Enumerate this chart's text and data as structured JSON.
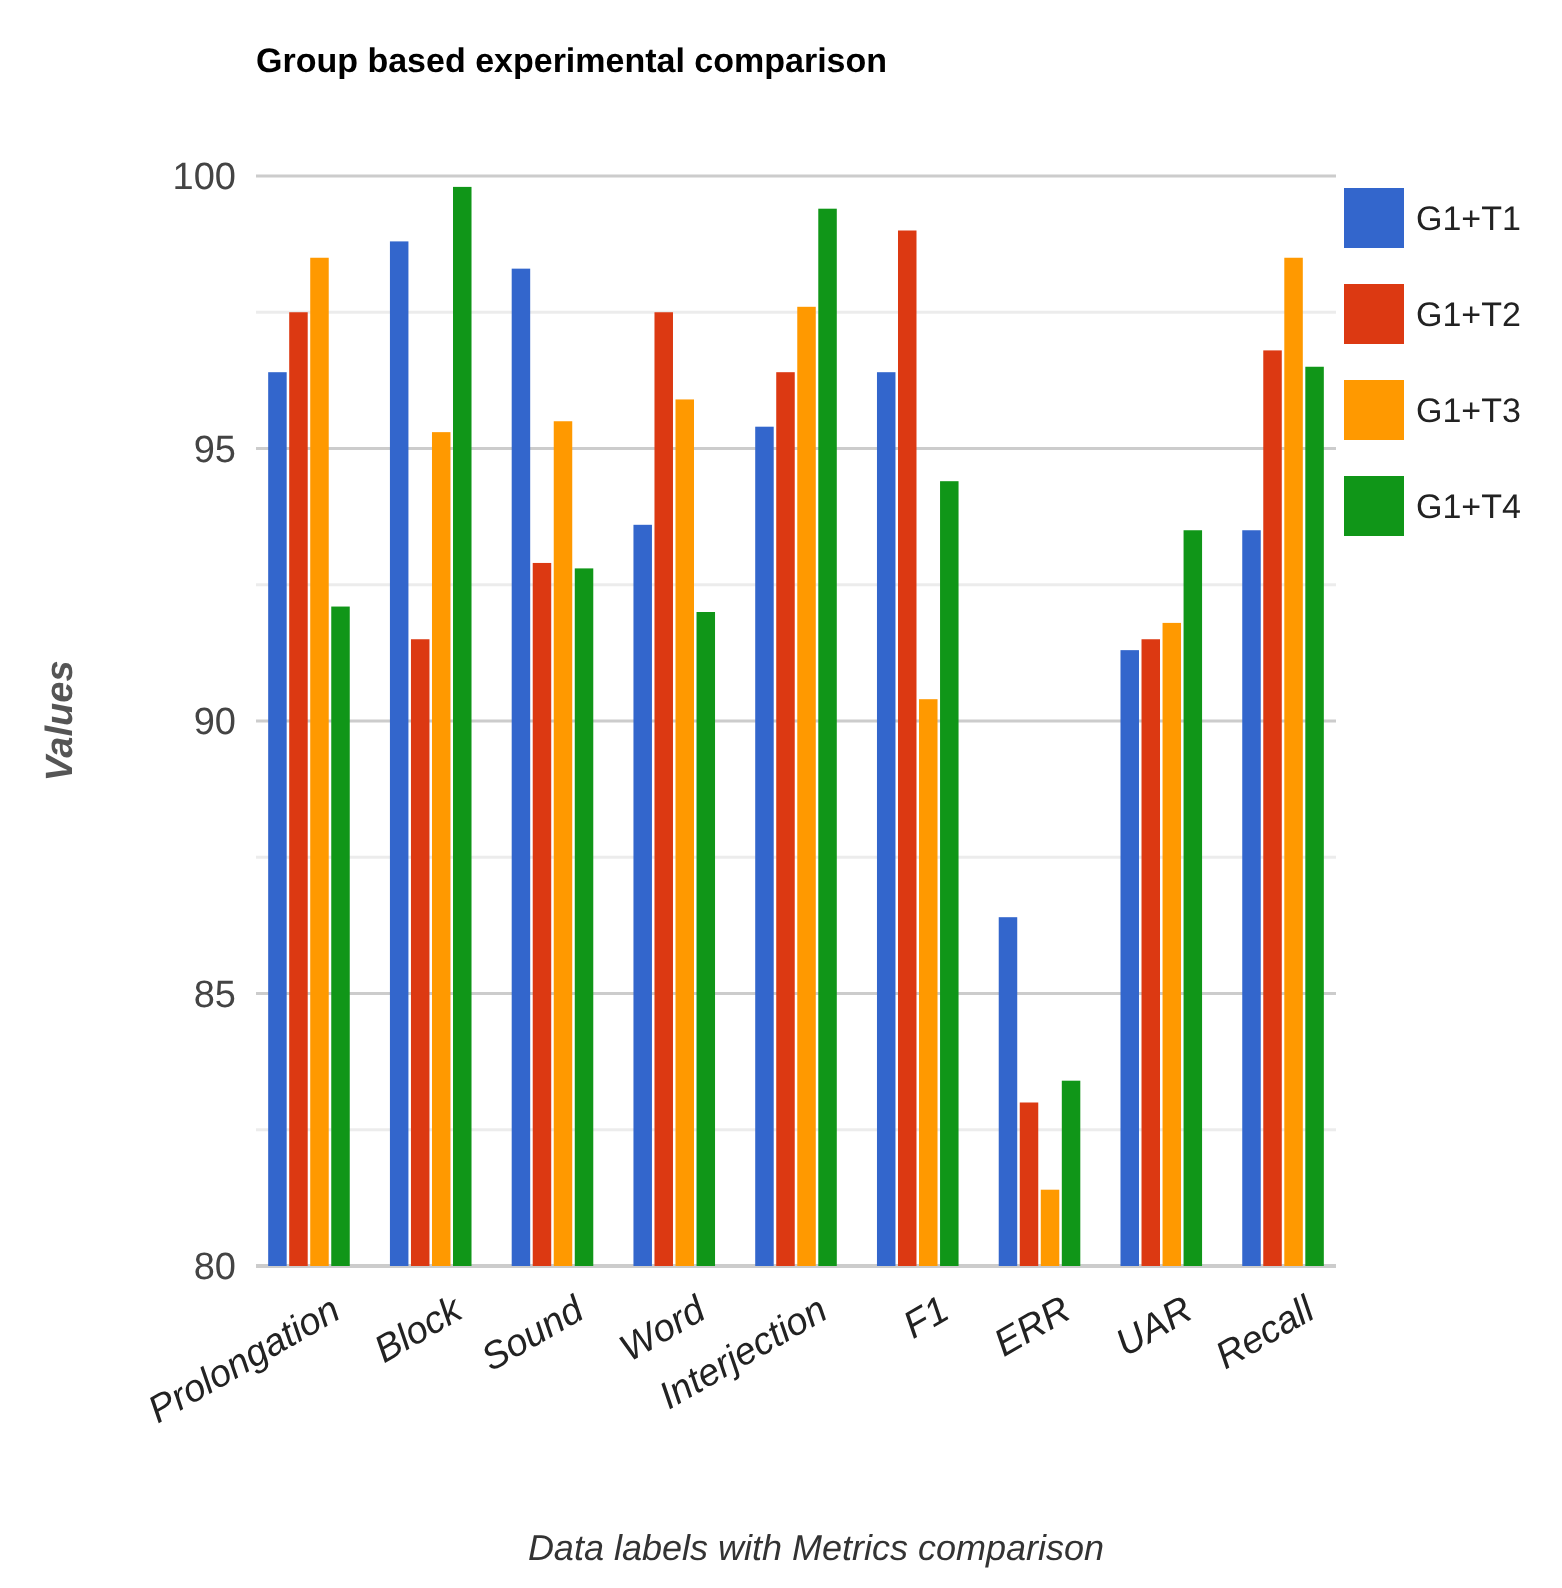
{
  "chart_data": {
    "type": "bar",
    "title": "Group based experimental comparison",
    "xlabel": "Data labels with Metrics comparison",
    "ylabel": "Values",
    "categories": [
      "Prolongation",
      "Block",
      "Sound",
      "Word",
      "Interjection",
      "F1",
      "ERR",
      "UAR",
      "Recall"
    ],
    "series": [
      {
        "name": "G1+T1",
        "color": "#3366cc",
        "values": [
          96.4,
          98.8,
          98.3,
          93.6,
          95.4,
          96.4,
          86.4,
          91.3,
          93.5
        ]
      },
      {
        "name": "G1+T2",
        "color": "#dc3912",
        "values": [
          97.5,
          91.5,
          92.9,
          97.5,
          96.4,
          99.0,
          83.0,
          91.5,
          96.8
        ]
      },
      {
        "name": "G1+T3",
        "color": "#ff9900",
        "values": [
          98.5,
          95.3,
          95.5,
          95.9,
          97.6,
          90.4,
          81.4,
          91.8,
          98.5
        ]
      },
      {
        "name": "G1+T4",
        "color": "#109618",
        "values": [
          92.1,
          99.8,
          92.8,
          92.0,
          99.4,
          94.4,
          83.4,
          93.5,
          96.5
        ]
      }
    ],
    "ylim": [
      80,
      100
    ],
    "yticks": [
      80,
      {
        "value": 82.5,
        "label": null
      },
      85,
      {
        "value": 87.5,
        "label": null
      },
      90,
      {
        "value": 92.5,
        "label": null
      },
      95,
      {
        "value": 97.5,
        "label": null
      },
      100
    ],
    "grid": "y",
    "legend": "right"
  }
}
